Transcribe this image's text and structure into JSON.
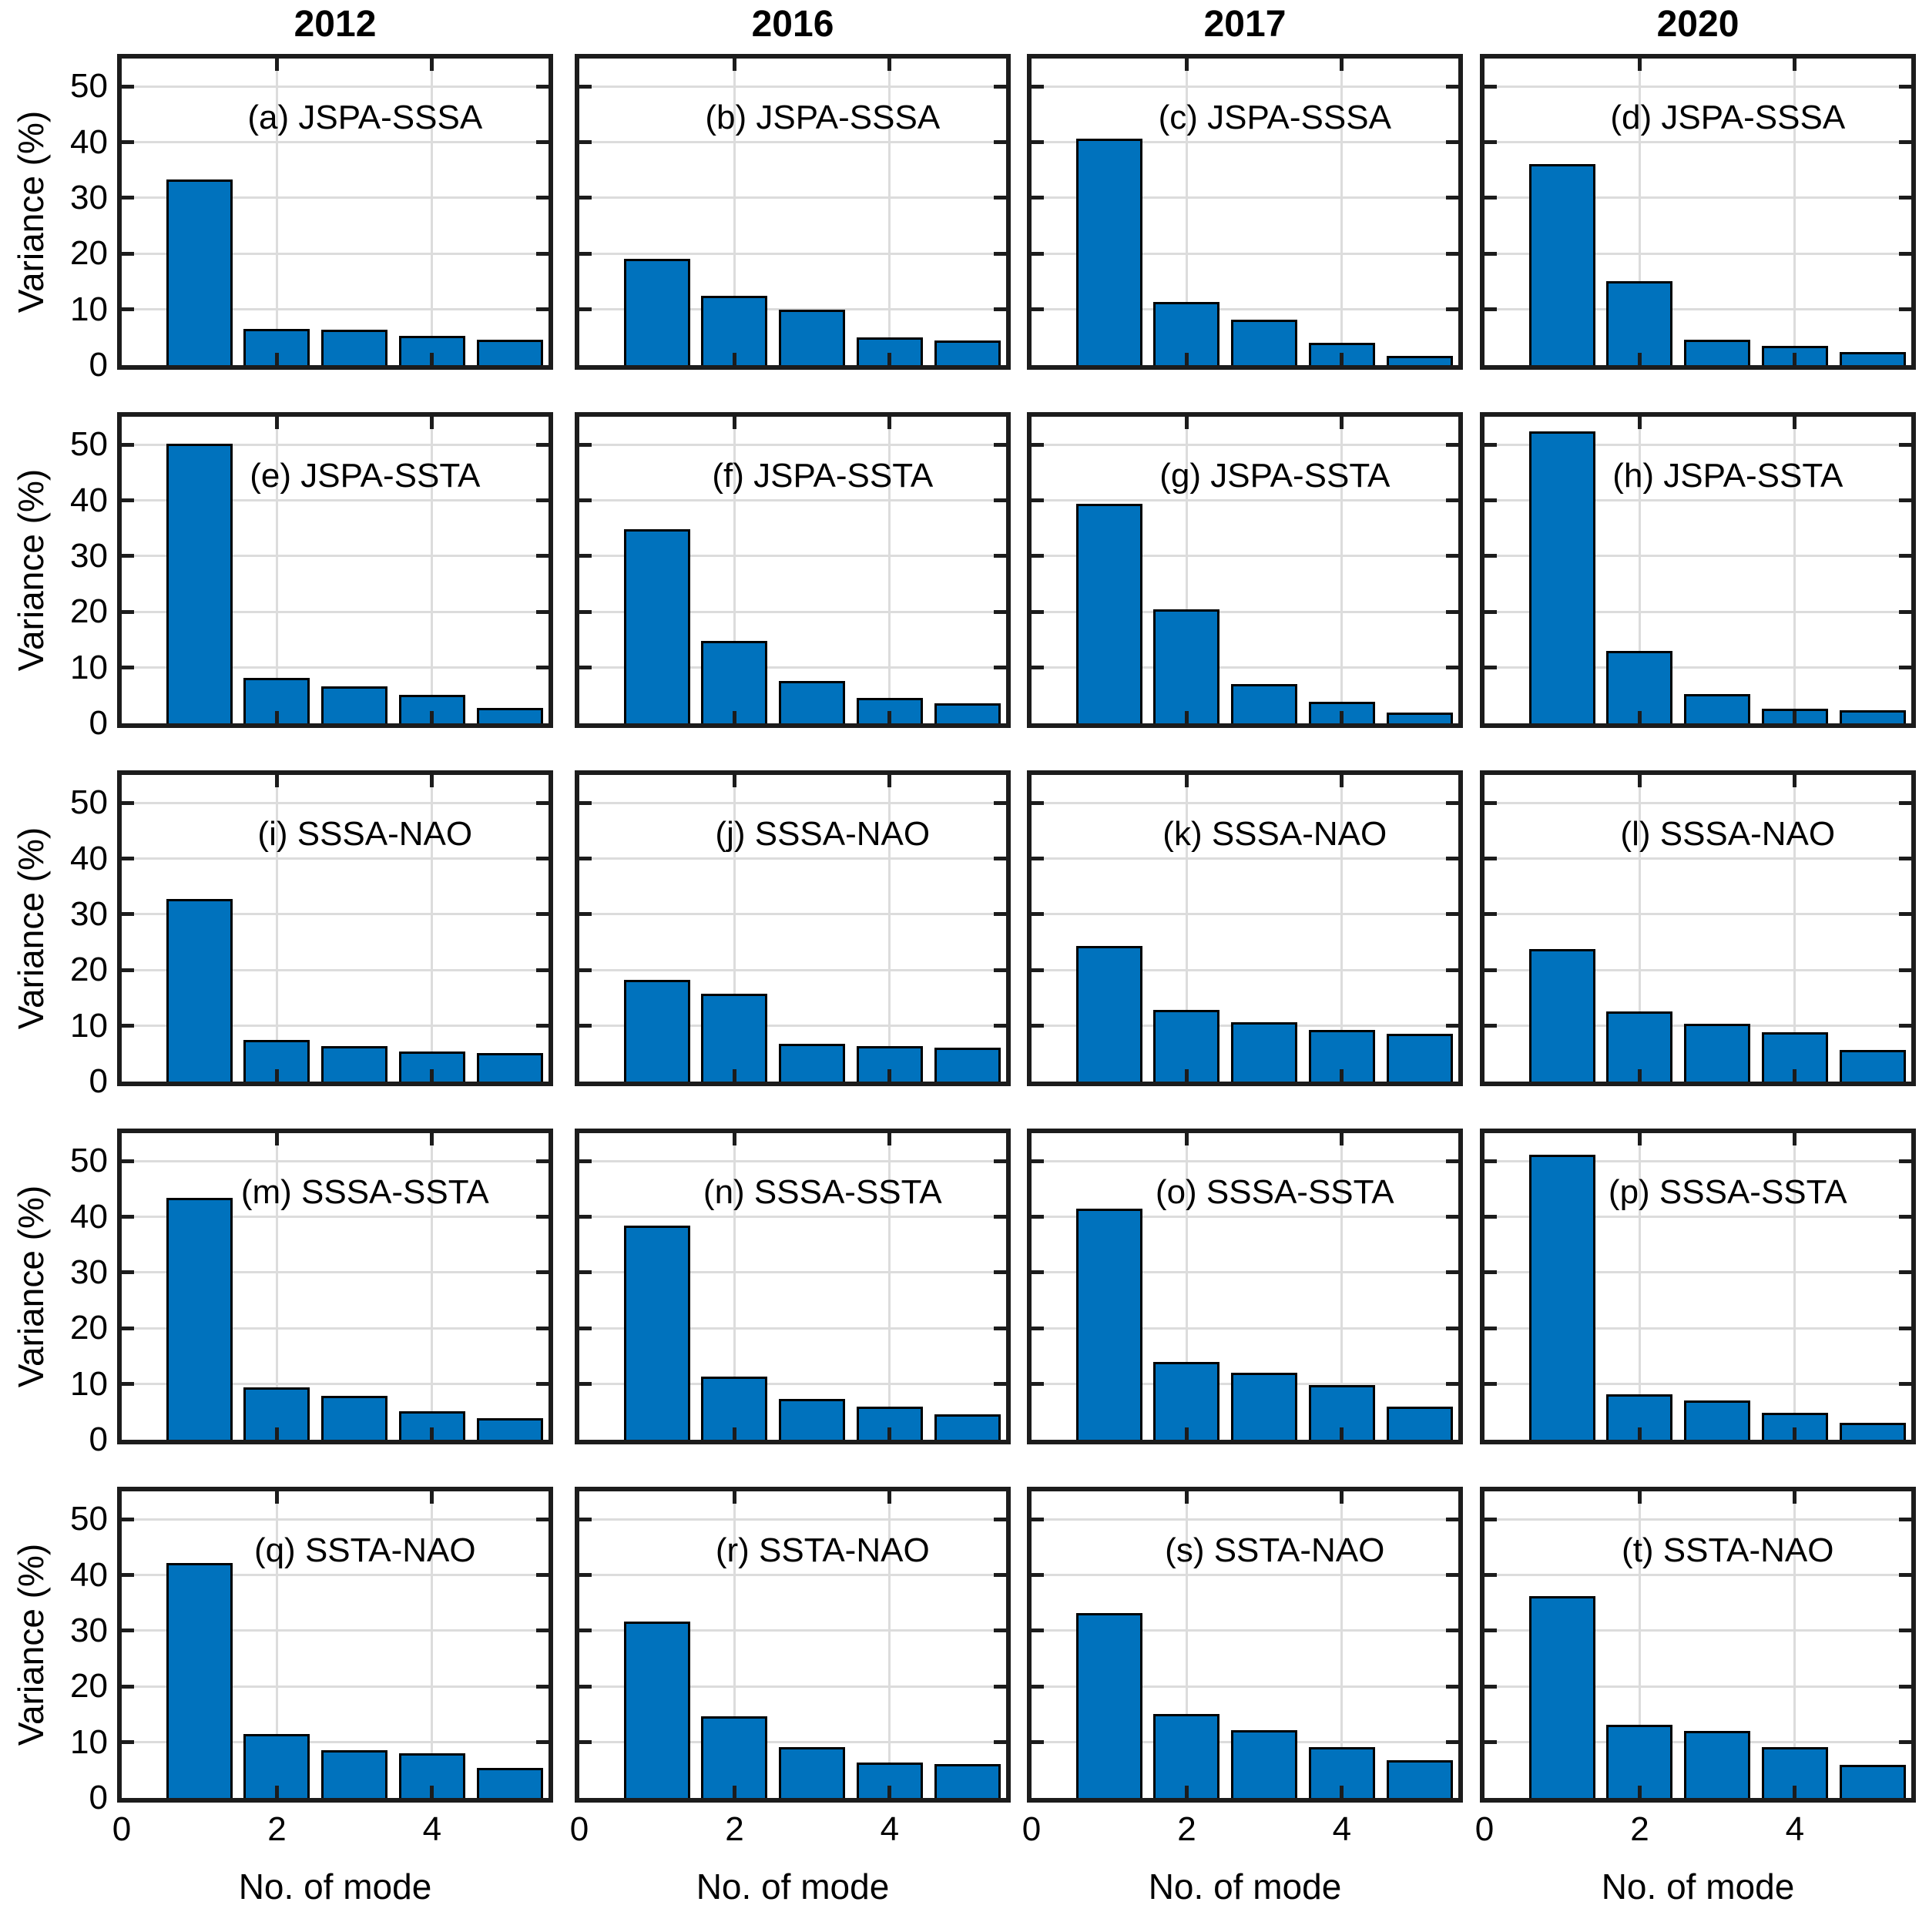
{
  "figure": {
    "col_titles": [
      "2012",
      "2016",
      "2017",
      "2020"
    ],
    "ylabel": "Variance (%)",
    "xlabel": "No. of mode",
    "y_ticks": [
      0,
      10,
      20,
      30,
      40,
      50
    ],
    "x_ticks": [
      0,
      2,
      4
    ],
    "ylim": [
      0,
      55
    ],
    "xlim": [
      0,
      5.5
    ],
    "grid": true,
    "colors": {
      "bar_fill": "#0072BD",
      "bar_edge": "#000000",
      "grid_line": "#DCDCDC",
      "axes_frame": "#1C1C1C",
      "text": "#000000"
    }
  },
  "chart_data": [
    {
      "type": "bar",
      "panel": "a",
      "title": "2012",
      "pair": "JSPA-SSSA",
      "label": "(a) JSPA-SSSA",
      "categories": [
        1,
        2,
        3,
        4,
        5
      ],
      "values": [
        33.3,
        6.5,
        6.3,
        5.3,
        4.6
      ]
    },
    {
      "type": "bar",
      "panel": "b",
      "title": "2016",
      "pair": "JSPA-SSSA",
      "label": "(b) JSPA-SSSA",
      "categories": [
        1,
        2,
        3,
        4,
        5
      ],
      "values": [
        19.1,
        12.4,
        10.0,
        5.0,
        4.4
      ]
    },
    {
      "type": "bar",
      "panel": "c",
      "title": "2017",
      "pair": "JSPA-SSSA",
      "label": "(c) JSPA-SSSA",
      "categories": [
        1,
        2,
        3,
        4,
        5
      ],
      "values": [
        40.6,
        11.3,
        8.1,
        4.0,
        1.7
      ]
    },
    {
      "type": "bar",
      "panel": "d",
      "title": "2020",
      "pair": "JSPA-SSSA",
      "label": "(d) JSPA-SSSA",
      "categories": [
        1,
        2,
        3,
        4,
        5
      ],
      "values": [
        36.1,
        15.1,
        4.5,
        3.4,
        2.4
      ]
    },
    {
      "type": "bar",
      "panel": "e",
      "title": "2012",
      "pair": "JSPA-SSTA",
      "label": "(e) JSPA-SSTA",
      "categories": [
        1,
        2,
        3,
        4,
        5
      ],
      "values": [
        50.2,
        8.2,
        6.6,
        5.1,
        2.8
      ]
    },
    {
      "type": "bar",
      "panel": "f",
      "title": "2016",
      "pair": "JSPA-SSTA",
      "label": "(f) JSPA-SSTA",
      "categories": [
        1,
        2,
        3,
        4,
        5
      ],
      "values": [
        34.8,
        14.8,
        7.6,
        4.6,
        3.6
      ]
    },
    {
      "type": "bar",
      "panel": "g",
      "title": "2017",
      "pair": "JSPA-SSTA",
      "label": "(g) JSPA-SSTA",
      "categories": [
        1,
        2,
        3,
        4,
        5
      ],
      "values": [
        39.4,
        20.5,
        7.0,
        3.9,
        1.9
      ]
    },
    {
      "type": "bar",
      "panel": "h",
      "title": "2020",
      "pair": "JSPA-SSTA",
      "label": "(h) JSPA-SSTA",
      "categories": [
        1,
        2,
        3,
        4,
        5
      ],
      "values": [
        52.4,
        13.0,
        5.3,
        2.6,
        2.3
      ]
    },
    {
      "type": "bar",
      "panel": "i",
      "title": "2012",
      "pair": "SSSA-NAO",
      "label": "(i) SSSA-NAO",
      "categories": [
        1,
        2,
        3,
        4,
        5
      ],
      "values": [
        32.8,
        7.4,
        6.4,
        5.4,
        5.1
      ]
    },
    {
      "type": "bar",
      "panel": "j",
      "title": "2016",
      "pair": "SSSA-NAO",
      "label": "(j) SSSA-NAO",
      "categories": [
        1,
        2,
        3,
        4,
        5
      ],
      "values": [
        18.3,
        15.8,
        6.8,
        6.4,
        6.1
      ]
    },
    {
      "type": "bar",
      "panel": "k",
      "title": "2017",
      "pair": "SSSA-NAO",
      "label": "(k) SSSA-NAO",
      "categories": [
        1,
        2,
        3,
        4,
        5
      ],
      "values": [
        24.3,
        12.9,
        10.6,
        9.2,
        8.6
      ]
    },
    {
      "type": "bar",
      "panel": "l",
      "title": "2020",
      "pair": "SSSA-NAO",
      "label": "(l) SSSA-NAO",
      "categories": [
        1,
        2,
        3,
        4,
        5
      ],
      "values": [
        23.8,
        12.6,
        10.4,
        8.8,
        5.6
      ]
    },
    {
      "type": "bar",
      "panel": "m",
      "title": "2012",
      "pair": "SSSA-SSTA",
      "label": "(m) SSSA-SSTA",
      "categories": [
        1,
        2,
        3,
        4,
        5
      ],
      "values": [
        43.4,
        9.4,
        7.9,
        5.1,
        3.9
      ]
    },
    {
      "type": "bar",
      "panel": "n",
      "title": "2016",
      "pair": "SSSA-SSTA",
      "label": "(n) SSSA-SSTA",
      "categories": [
        1,
        2,
        3,
        4,
        5
      ],
      "values": [
        38.4,
        11.4,
        7.3,
        5.9,
        4.5
      ]
    },
    {
      "type": "bar",
      "panel": "o",
      "title": "2017",
      "pair": "SSSA-SSTA",
      "label": "(o) SSSA-SSTA",
      "categories": [
        1,
        2,
        3,
        4,
        5
      ],
      "values": [
        41.5,
        14.0,
        12.0,
        9.8,
        6.0
      ]
    },
    {
      "type": "bar",
      "panel": "p",
      "title": "2020",
      "pair": "SSSA-SSTA",
      "label": "(p) SSSA-SSTA",
      "categories": [
        1,
        2,
        3,
        4,
        5
      ],
      "values": [
        51.2,
        8.2,
        7.1,
        4.8,
        3.0
      ]
    },
    {
      "type": "bar",
      "panel": "q",
      "title": "2012",
      "pair": "SSTA-NAO",
      "label": "(q) SSTA-NAO",
      "categories": [
        1,
        2,
        3,
        4,
        5
      ],
      "values": [
        42.2,
        11.5,
        8.6,
        8.0,
        5.4
      ]
    },
    {
      "type": "bar",
      "panel": "r",
      "title": "2016",
      "pair": "SSTA-NAO",
      "label": "(r) SSTA-NAO",
      "categories": [
        1,
        2,
        3,
        4,
        5
      ],
      "values": [
        31.6,
        14.7,
        9.1,
        6.4,
        6.1
      ]
    },
    {
      "type": "bar",
      "panel": "s",
      "title": "2017",
      "pair": "SSTA-NAO",
      "label": "(s) SSTA-NAO",
      "categories": [
        1,
        2,
        3,
        4,
        5
      ],
      "values": [
        33.1,
        15.1,
        12.1,
        9.1,
        6.8
      ]
    },
    {
      "type": "bar",
      "panel": "t",
      "title": "2020",
      "pair": "SSTA-NAO",
      "label": "(t) SSTA-NAO",
      "categories": [
        1,
        2,
        3,
        4,
        5
      ],
      "values": [
        36.2,
        13.1,
        12.0,
        9.1,
        6.0
      ]
    }
  ]
}
